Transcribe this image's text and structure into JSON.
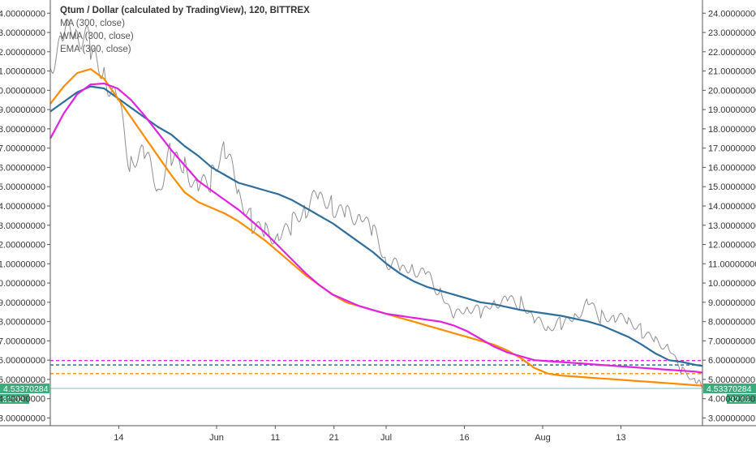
{
  "chart_data": {
    "type": "line",
    "title": "Qtum / Dollar (calculated by TradingView), 120, BITTREX",
    "indicators": [
      "MA (300, close)",
      "WMA (300, close)",
      "EMA (300, close)"
    ],
    "xlabel": "",
    "ylabel": "",
    "x_ticks": [
      "14",
      "Jun",
      "11",
      "21",
      "Jul",
      "16",
      "Aug",
      "13"
    ],
    "y_ticks": [
      "3.00000000",
      "4.00000000",
      "5.00000000",
      "6.00000000",
      "7.00000000",
      "8.00000000",
      "9.00000000",
      "10.00000000",
      "11.00000000",
      "12.00000000",
      "13.00000000",
      "14.00000000",
      "15.00000000",
      "16.00000000",
      "17.00000000",
      "18.00000000",
      "19.00000000",
      "20.00000000",
      "21.00000000",
      "22.00000000",
      "23.00000000",
      "24.00000000"
    ],
    "ylim": [
      2.6,
      24.6
    ],
    "grid": false,
    "right_axis": true,
    "x": [
      0,
      2,
      4,
      6,
      8,
      10,
      12,
      14,
      16,
      18,
      20,
      22,
      24,
      26,
      28,
      30,
      32,
      34,
      36,
      38,
      40,
      42,
      44,
      46,
      48,
      50,
      52,
      54,
      56,
      58,
      60,
      62,
      64,
      66,
      68,
      70,
      72,
      74,
      76,
      78,
      80,
      82,
      84,
      86,
      88,
      90,
      92,
      94,
      96,
      97
    ],
    "series": [
      {
        "name": "Qtum / Dollar",
        "color": "#8f8f8f",
        "values": [
          20.8,
          22.5,
          23.1,
          22.2,
          21.1,
          19.6,
          16.0,
          16.7,
          14.7,
          16.8,
          16.2,
          15.0,
          15.4,
          16.9,
          14.6,
          13.2,
          12.8,
          12.4,
          13.0,
          13.7,
          14.5,
          14.1,
          13.7,
          13.6,
          12.6,
          11.0,
          10.7,
          10.9,
          10.5,
          9.6,
          8.1,
          8.7,
          8.4,
          9.1,
          9.2,
          9.0,
          8.0,
          7.6,
          7.9,
          8.3,
          9.1,
          8.2,
          8.1,
          8.0,
          7.5,
          7.1,
          6.7,
          5.4,
          4.9,
          4.6
        ]
      },
      {
        "name": "MA (300, close)",
        "color": "#2f6e9b",
        "values": [
          18.9,
          19.4,
          19.9,
          20.2,
          20.1,
          19.6,
          19.1,
          18.6,
          18.1,
          17.7,
          17.1,
          16.6,
          16.0,
          15.6,
          15.2,
          15.0,
          14.8,
          14.6,
          14.3,
          13.9,
          13.5,
          13.1,
          12.6,
          12.1,
          11.6,
          11.0,
          10.5,
          10.1,
          9.8,
          9.6,
          9.4,
          9.2,
          9.0,
          8.9,
          8.75,
          8.6,
          8.5,
          8.4,
          8.3,
          8.15,
          8.0,
          7.8,
          7.5,
          7.2,
          6.8,
          6.35,
          6.0,
          5.9,
          5.75,
          5.7
        ]
      },
      {
        "name": "WMA (300, close)",
        "color": "#ff8c00",
        "values": [
          19.3,
          20.2,
          20.9,
          21.1,
          20.6,
          19.6,
          18.6,
          17.6,
          16.6,
          15.6,
          14.7,
          14.2,
          13.9,
          13.6,
          13.2,
          12.7,
          12.2,
          11.6,
          11.0,
          10.4,
          9.9,
          9.4,
          9.0,
          8.8,
          8.6,
          8.4,
          8.2,
          8.0,
          7.8,
          7.6,
          7.4,
          7.2,
          7.0,
          6.8,
          6.5,
          6.1,
          5.6,
          5.3,
          5.2,
          5.15,
          5.1,
          5.05,
          5.0,
          4.95,
          4.9,
          4.85,
          4.8,
          4.75,
          4.7,
          4.68
        ]
      },
      {
        "name": "EMA (300, close)",
        "color": "#e023e0",
        "values": [
          17.5,
          18.8,
          19.8,
          20.3,
          20.35,
          20.1,
          19.5,
          18.7,
          17.8,
          16.9,
          16.1,
          15.3,
          14.8,
          14.3,
          13.8,
          13.2,
          12.6,
          11.9,
          11.2,
          10.5,
          9.9,
          9.4,
          9.1,
          8.8,
          8.6,
          8.4,
          8.3,
          8.2,
          8.1,
          8.0,
          7.8,
          7.5,
          7.1,
          6.7,
          6.4,
          6.2,
          6.0,
          5.95,
          5.9,
          5.85,
          5.8,
          5.75,
          5.7,
          5.65,
          5.6,
          5.55,
          5.5,
          5.45,
          5.4,
          5.35
        ]
      }
    ],
    "reference_lines": [
      {
        "value": 5.98,
        "color": "#e023e0",
        "style": "dashed"
      },
      {
        "value": 5.75,
        "color": "#2f6e9b",
        "style": "dashed"
      },
      {
        "value": 5.3,
        "color": "#ff8c00",
        "style": "dashed"
      },
      {
        "value": 4.5337,
        "color": "#9fd3d3",
        "style": "solid"
      }
    ],
    "last_price": {
      "label": "4.53370284",
      "value": 4.5337,
      "countdown": "32:02",
      "color": "#3cab7b"
    }
  }
}
